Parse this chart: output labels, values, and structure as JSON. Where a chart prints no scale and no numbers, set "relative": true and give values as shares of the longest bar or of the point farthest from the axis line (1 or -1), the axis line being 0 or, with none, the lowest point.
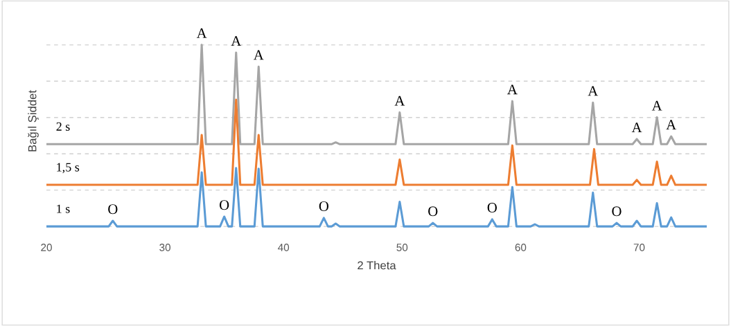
{
  "chart_data": {
    "type": "line",
    "xlabel": "2 Theta",
    "ylabel": "Bağıl Şiddet",
    "relative": true,
    "xlim": [
      20,
      75.7
    ],
    "xticks": [
      20,
      30,
      40,
      50,
      60,
      70
    ],
    "grid": "y",
    "legend": false,
    "marker": "none",
    "line_style": "solid",
    "series": [
      {
        "name": "2 s",
        "color": "#a5a5a5",
        "x": [
          20,
          32.75,
          33.1,
          33.45,
          35.65,
          36.0,
          36.35,
          37.55,
          37.9,
          38.25,
          44.05,
          44.4,
          44.75,
          49.45,
          49.8,
          50.15,
          58.95,
          59.3,
          59.65,
          65.75,
          66.1,
          66.45,
          69.45,
          69.8,
          70.15,
          71.15,
          71.5,
          71.85,
          72.35,
          72.7,
          73.05,
          75.7
        ],
        "values": [
          0.453,
          0.453,
          1.0,
          0.453,
          0.453,
          0.957,
          0.453,
          0.453,
          0.88,
          0.453,
          0.453,
          0.463,
          0.453,
          0.453,
          0.628,
          0.453,
          0.453,
          0.69,
          0.453,
          0.453,
          0.682,
          0.453,
          0.453,
          0.481,
          0.453,
          0.453,
          0.601,
          0.453,
          0.453,
          0.496,
          0.453,
          0.453
        ]
      },
      {
        "name": "1,5 s",
        "color": "#ed7d31",
        "x": [
          20,
          32.75,
          33.1,
          33.45,
          35.65,
          36.0,
          36.35,
          37.55,
          37.9,
          38.25,
          49.45,
          49.8,
          50.15,
          58.95,
          59.3,
          59.65,
          65.85,
          66.2,
          66.55,
          69.45,
          69.8,
          70.15,
          71.15,
          71.5,
          71.85,
          72.35,
          72.7,
          73.05,
          75.7
        ],
        "values": [
          0.229,
          0.229,
          0.504,
          0.229,
          0.229,
          0.698,
          0.229,
          0.229,
          0.504,
          0.229,
          0.229,
          0.368,
          0.229,
          0.229,
          0.446,
          0.229,
          0.229,
          0.426,
          0.229,
          0.229,
          0.256,
          0.229,
          0.229,
          0.357,
          0.229,
          0.229,
          0.279,
          0.229,
          0.229
        ]
      },
      {
        "name": "1 s",
        "color": "#5b9bd5",
        "x": [
          20,
          25.25,
          25.6,
          25.95,
          32.75,
          33.1,
          33.45,
          34.65,
          35.0,
          35.35,
          35.65,
          36.0,
          36.35,
          37.55,
          37.9,
          38.25,
          43.05,
          43.4,
          43.75,
          44.05,
          44.4,
          44.75,
          49.45,
          49.8,
          50.15,
          52.25,
          52.6,
          52.95,
          57.25,
          57.6,
          57.95,
          58.95,
          59.3,
          59.65,
          60.85,
          61.2,
          61.55,
          65.75,
          66.1,
          66.45,
          67.75,
          68.1,
          68.45,
          69.45,
          69.8,
          70.15,
          71.15,
          71.5,
          71.85,
          72.35,
          72.7,
          73.05,
          75.7
        ],
        "values": [
          0,
          0,
          0.031,
          0,
          0,
          0.298,
          0,
          0,
          0.054,
          0,
          0,
          0.322,
          0,
          0,
          0.318,
          0,
          0,
          0.047,
          0,
          0,
          0.016,
          0,
          0,
          0.136,
          0,
          0,
          0.019,
          0,
          0,
          0.039,
          0,
          0,
          0.217,
          0,
          0,
          0.012,
          0,
          0,
          0.186,
          0,
          0,
          0.019,
          0,
          0,
          0.031,
          0,
          0,
          0.128,
          0,
          0,
          0.05,
          0,
          0
        ]
      }
    ],
    "annotations": [
      {
        "text": "A",
        "x": 33.1,
        "y": 1.0
      },
      {
        "text": "A",
        "x": 36.0,
        "y": 0.957
      },
      {
        "text": "A",
        "x": 37.9,
        "y": 0.88
      },
      {
        "text": "A",
        "x": 49.8,
        "y": 0.628
      },
      {
        "text": "A",
        "x": 59.3,
        "y": 0.69
      },
      {
        "text": "A",
        "x": 66.1,
        "y": 0.682
      },
      {
        "text": "A",
        "x": 69.8,
        "y": 0.481
      },
      {
        "text": "A",
        "x": 71.5,
        "y": 0.601
      },
      {
        "text": "A",
        "x": 72.7,
        "y": 0.496
      },
      {
        "text": "O",
        "x": 25.6,
        "y": 0.031
      },
      {
        "text": "O",
        "x": 35.0,
        "y": 0.054
      },
      {
        "text": "O",
        "x": 43.4,
        "y": 0.047
      },
      {
        "text": "O",
        "x": 52.6,
        "y": 0.019
      },
      {
        "text": "O",
        "x": 57.6,
        "y": 0.039
      },
      {
        "text": "O",
        "x": 68.1,
        "y": 0.019
      }
    ]
  }
}
